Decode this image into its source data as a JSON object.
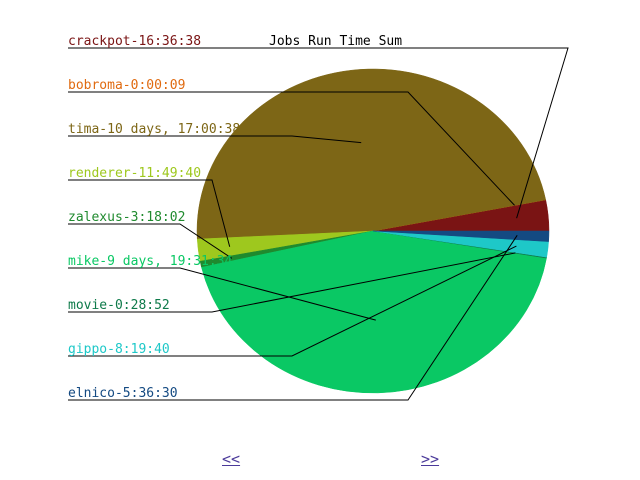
{
  "chart_data": {
    "type": "pie",
    "title": "Jobs Run Time Sum",
    "legend_position": "left",
    "slices": [
      {
        "label": "crackpot-16:36:38",
        "value": 59798,
        "color": "#7a1414"
      },
      {
        "label": "bobroma-0:00:09",
        "value": 9,
        "color": "#e06a10"
      },
      {
        "label": "tima-10 days, 17:00:38",
        "value": 925238,
        "color": "#7d6616"
      },
      {
        "label": "renderer-11:49:40",
        "value": 42580,
        "color": "#9ec81e"
      },
      {
        "label": "zalexus-3:18:02",
        "value": 11882,
        "color": "#1f8a2e"
      },
      {
        "label": "mike-9 days, 19:31:34",
        "value": 847894,
        "color": "#0ac864"
      },
      {
        "label": "movie-0:28:52",
        "value": 1732,
        "color": "#0e7a4a"
      },
      {
        "label": "gippo-8:19:40",
        "value": 29980,
        "color": "#1ec8c8"
      },
      {
        "label": "elnico-5:36:30",
        "value": 20190,
        "color": "#144a82"
      }
    ]
  },
  "navigation": {
    "prev_label": "<<",
    "next_label": ">>"
  }
}
